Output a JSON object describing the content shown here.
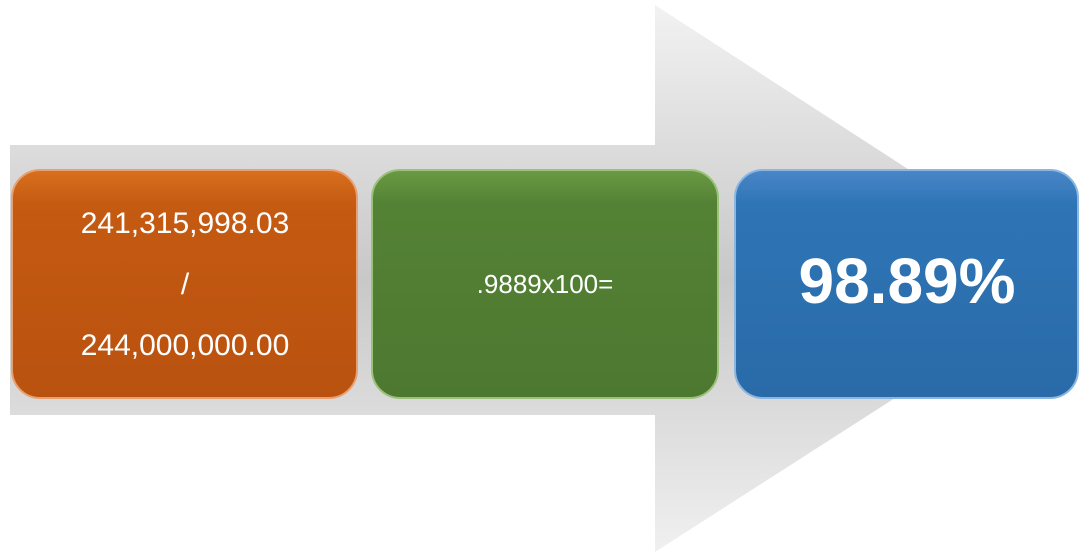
{
  "nodes": [
    {
      "lines": [
        "241,315,998.03",
        "/",
        "244,000,000.00"
      ]
    },
    {
      "label": ".9889x100="
    },
    {
      "label": "98.89%"
    }
  ]
}
